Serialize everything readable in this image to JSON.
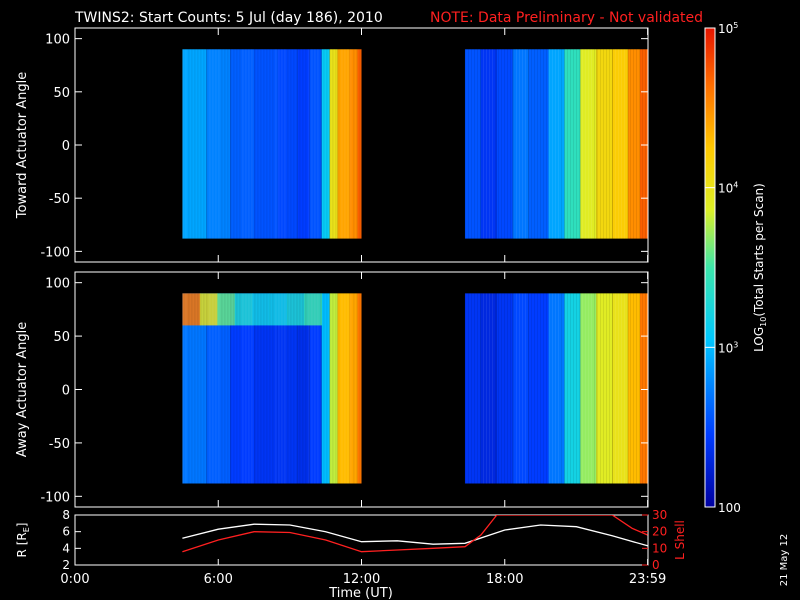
{
  "chart_data": {
    "type": "heatmap",
    "title": {
      "main": "TWINS2: Start Counts:  5 Jul (day 186), 2010",
      "note": "NOTE: Data Preliminary - Not validated"
    },
    "date_stamp": "21 May 12",
    "colorbar": {
      "label_prefix": "LOG",
      "label_sub": "10",
      "label_suffix": "(Total Starts per Scan)",
      "scale": "log",
      "range": [
        100,
        100000
      ],
      "tick_values": [
        100,
        1000,
        10000,
        100000
      ],
      "tick_labels": [
        {
          "base": "100",
          "exp": ""
        },
        {
          "base": "10",
          "exp": "3"
        },
        {
          "base": "10",
          "exp": "4"
        },
        {
          "base": "10",
          "exp": "5"
        }
      ]
    },
    "x_axis": {
      "label": "Time (UT)",
      "range_hours": [
        0,
        24
      ],
      "ticks": [
        {
          "value": "00:00",
          "label": "0:00"
        },
        {
          "value": "06:00",
          "label": "6:00"
        },
        {
          "value": "12:00",
          "label": "12:00"
        },
        {
          "value": "18:00",
          "label": "18:00"
        },
        {
          "value": "23:59",
          "label": "23:59"
        }
      ]
    },
    "panels": [
      {
        "ylabel": "Toward Actuator Angle",
        "ylim": [
          -110,
          110
        ],
        "yticks": [
          100,
          50,
          0,
          -50,
          -100
        ],
        "data_angle_range": [
          -88,
          90
        ],
        "segments": [
          {
            "start": "04:30",
            "end": "12:00",
            "columns": [
              {
                "t": "04:30",
                "log_counts": 2.9
              },
              {
                "t": "05:30",
                "log_counts": 2.75
              },
              {
                "t": "06:30",
                "log_counts": 2.6
              },
              {
                "t": "07:30",
                "log_counts": 2.55
              },
              {
                "t": "08:30",
                "log_counts": 2.5
              },
              {
                "t": "09:20",
                "log_counts": 2.45
              },
              {
                "t": "09:50",
                "log_counts": 2.55
              },
              {
                "t": "10:20",
                "log_counts": 3.1
              },
              {
                "t": "10:40",
                "log_counts": 4.0
              },
              {
                "t": "11:00",
                "log_counts": 4.4
              },
              {
                "t": "11:30",
                "log_counts": 4.5
              },
              {
                "t": "11:50",
                "log_counts": 4.7
              }
            ]
          },
          {
            "start": "16:20",
            "end": "23:59",
            "columns": [
              {
                "t": "16:20",
                "log_counts": 2.55
              },
              {
                "t": "17:00",
                "log_counts": 2.4
              },
              {
                "t": "17:40",
                "log_counts": 2.5
              },
              {
                "t": "18:20",
                "log_counts": 2.7
              },
              {
                "t": "19:00",
                "log_counts": 2.6
              },
              {
                "t": "19:50",
                "log_counts": 2.9
              },
              {
                "t": "20:30",
                "log_counts": 3.4
              },
              {
                "t": "21:10",
                "log_counts": 3.9
              },
              {
                "t": "21:50",
                "log_counts": 4.1
              },
              {
                "t": "22:30",
                "log_counts": 4.2
              },
              {
                "t": "23:10",
                "log_counts": 4.5
              },
              {
                "t": "23:40",
                "log_counts": 4.7
              }
            ]
          }
        ]
      },
      {
        "ylabel": "Away Actuator Angle",
        "ylim": [
          -110,
          110
        ],
        "yticks": [
          100,
          50,
          0,
          -50,
          -100
        ],
        "data_angle_range": [
          -88,
          90
        ],
        "segments": [
          {
            "start": "04:30",
            "end": "12:00",
            "columns": [
              {
                "t": "04:30",
                "log_counts": 2.7
              },
              {
                "t": "05:30",
                "log_counts": 2.6
              },
              {
                "t": "06:30",
                "log_counts": 2.45
              },
              {
                "t": "07:30",
                "log_counts": 2.4
              },
              {
                "t": "08:30",
                "log_counts": 2.4
              },
              {
                "t": "09:20",
                "log_counts": 2.35
              },
              {
                "t": "09:50",
                "log_counts": 2.45
              },
              {
                "t": "10:20",
                "log_counts": 3.0
              },
              {
                "t": "10:40",
                "log_counts": 3.8
              },
              {
                "t": "11:00",
                "log_counts": 4.3
              },
              {
                "t": "11:30",
                "log_counts": 4.4
              },
              {
                "t": "11:50",
                "log_counts": 4.6
              }
            ],
            "band": {
              "angle_range": [
                60,
                90
              ],
              "log_counts": [
                4.6,
                4.0,
                3.6,
                3.3,
                3.2,
                3.2,
                3.3,
                3.5
              ]
            }
          },
          {
            "start": "16:20",
            "end": "23:59",
            "columns": [
              {
                "t": "16:20",
                "log_counts": 2.4
              },
              {
                "t": "17:00",
                "log_counts": 2.3
              },
              {
                "t": "17:40",
                "log_counts": 2.4
              },
              {
                "t": "18:20",
                "log_counts": 2.5
              },
              {
                "t": "19:00",
                "log_counts": 2.45
              },
              {
                "t": "19:50",
                "log_counts": 2.7
              },
              {
                "t": "20:30",
                "log_counts": 3.2
              },
              {
                "t": "21:10",
                "log_counts": 3.7
              },
              {
                "t": "21:50",
                "log_counts": 3.9
              },
              {
                "t": "22:30",
                "log_counts": 4.0
              },
              {
                "t": "23:10",
                "log_counts": 4.3
              },
              {
                "t": "23:40",
                "log_counts": 4.6
              }
            ]
          }
        ]
      }
    ],
    "orbit_panel": {
      "ylabel_left": "R [R",
      "ylabel_left_sub": "E",
      "ylabel_left_end": "]",
      "ylim_left": [
        2,
        8
      ],
      "yticks_left": [
        2,
        4,
        6,
        8
      ],
      "ylabel_right": "L Shell",
      "ylim_right": [
        0,
        30
      ],
      "yticks_right": [
        0,
        10,
        20,
        30
      ],
      "series": [
        {
          "color": "#ffffff",
          "axis": "left",
          "x": [
            "04:30",
            "06:00",
            "07:30",
            "09:00",
            "10:30",
            "12:00",
            "13:30",
            "15:00",
            "16:20",
            "18:00",
            "19:30",
            "21:00",
            "22:30",
            "23:59"
          ],
          "values": [
            5.2,
            6.3,
            6.9,
            6.8,
            6.0,
            4.8,
            4.9,
            4.5,
            4.6,
            6.2,
            6.8,
            6.6,
            5.5,
            4.3
          ]
        },
        {
          "color": "#ff2020",
          "axis": "right",
          "x": [
            "04:30",
            "06:00",
            "07:30",
            "09:00",
            "10:30",
            "12:00",
            "13:30",
            "15:00",
            "16:20",
            "17:00",
            "17:40",
            "22:30",
            "23:20",
            "23:59"
          ],
          "values": [
            8,
            15,
            20,
            19.5,
            15,
            8,
            9,
            10,
            11,
            18,
            30,
            30,
            22,
            18
          ]
        }
      ]
    }
  }
}
